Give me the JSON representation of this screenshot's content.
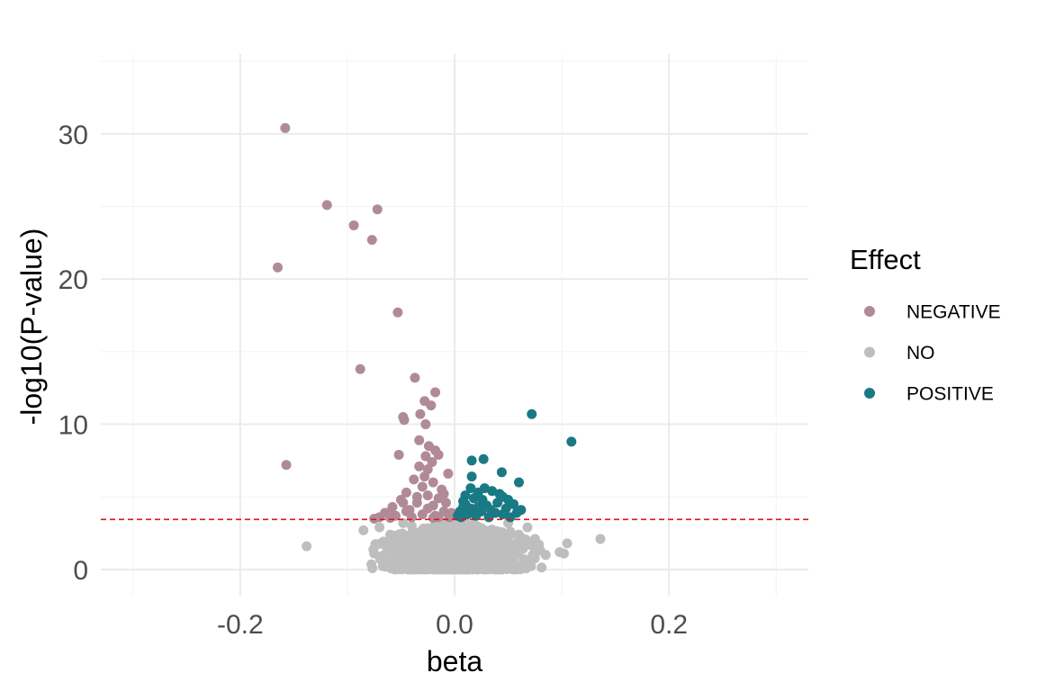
{
  "chart_data": {
    "type": "scatter",
    "title": "",
    "xlabel": "beta",
    "ylabel": "-log10(P-value)",
    "xlim": [
      -0.33,
      0.33
    ],
    "ylim": [
      -1.8,
      35.5
    ],
    "x_ticks": [
      -0.2,
      0.0,
      0.2
    ],
    "x_tick_labels": [
      "-0.2",
      "0.0",
      "0.2"
    ],
    "x_minor_ticks": [
      -0.3,
      -0.1,
      0.1,
      0.3
    ],
    "y_ticks": [
      0,
      10,
      20,
      30
    ],
    "y_tick_labels": [
      "0",
      "10",
      "20",
      "30"
    ],
    "y_minor_ticks": [
      5,
      15,
      25,
      35
    ],
    "grid": true,
    "threshold": {
      "y": 3.45,
      "color": "#d7191c",
      "style": "dashed"
    },
    "legend": {
      "title": "Effect",
      "position": "right"
    },
    "series": [
      {
        "name": "NEGATIVE",
        "color": "#b08b97",
        "points": [
          [
            -0.158,
            30.4
          ],
          [
            -0.119,
            25.1
          ],
          [
            -0.072,
            24.8
          ],
          [
            -0.094,
            23.7
          ],
          [
            -0.077,
            22.7
          ],
          [
            -0.165,
            20.8
          ],
          [
            -0.053,
            17.7
          ],
          [
            -0.088,
            13.8
          ],
          [
            -0.037,
            13.2
          ],
          [
            -0.018,
            12.2
          ],
          [
            -0.028,
            11.6
          ],
          [
            -0.022,
            11.3
          ],
          [
            -0.032,
            10.7
          ],
          [
            -0.048,
            10.5
          ],
          [
            -0.047,
            10.3
          ],
          [
            -0.027,
            10.0
          ],
          [
            -0.033,
            8.9
          ],
          [
            -0.024,
            8.5
          ],
          [
            -0.018,
            8.2
          ],
          [
            -0.027,
            7.8
          ],
          [
            -0.015,
            7.9
          ],
          [
            -0.052,
            7.9
          ],
          [
            -0.021,
            7.4
          ],
          [
            -0.033,
            7.1
          ],
          [
            -0.157,
            7.2
          ],
          [
            -0.025,
            6.9
          ],
          [
            -0.006,
            6.6
          ],
          [
            -0.038,
            6.2
          ],
          [
            -0.02,
            6.0
          ],
          [
            -0.03,
            5.7
          ],
          [
            -0.045,
            5.3
          ],
          [
            -0.012,
            5.5
          ],
          [
            -0.025,
            5.1
          ],
          [
            -0.05,
            4.8
          ],
          [
            -0.035,
            4.6
          ],
          [
            -0.015,
            4.9
          ],
          [
            -0.058,
            4.3
          ],
          [
            -0.042,
            4.1
          ],
          [
            -0.02,
            4.4
          ],
          [
            -0.065,
            3.9
          ],
          [
            -0.07,
            3.6
          ],
          [
            -0.055,
            3.7
          ],
          [
            -0.03,
            3.8
          ],
          [
            -0.01,
            4.0
          ],
          [
            -0.003,
            3.9
          ],
          [
            -0.04,
            3.6
          ],
          [
            -0.015,
            3.6
          ],
          [
            -0.075,
            3.5
          ],
          [
            -0.06,
            3.55
          ],
          [
            -0.025,
            4.2
          ],
          [
            -0.008,
            4.6
          ],
          [
            -0.048,
            4.6
          ],
          [
            -0.02,
            3.55
          ],
          [
            -0.005,
            3.6
          ],
          [
            -0.062,
            3.9
          ],
          [
            -0.035,
            5.0
          ],
          [
            -0.01,
            5.2
          ],
          [
            -0.028,
            6.4
          ],
          [
            -0.045,
            4.0
          ],
          [
            -0.018,
            3.7
          ]
        ]
      },
      {
        "name": "NO",
        "color": "#bebebe",
        "points": [
          [
            -0.138,
            1.6
          ],
          [
            -0.085,
            2.7
          ],
          [
            -0.06,
            2.4
          ],
          [
            -0.05,
            1.2
          ],
          [
            -0.045,
            2.2
          ],
          [
            -0.04,
            3.0
          ],
          [
            -0.035,
            0.6
          ],
          [
            -0.03,
            1.8
          ],
          [
            -0.025,
            2.6
          ],
          [
            -0.02,
            0.3
          ],
          [
            -0.015,
            1.4
          ],
          [
            -0.01,
            3.1
          ],
          [
            -0.005,
            0.8
          ],
          [
            0.0,
            2.0
          ],
          [
            0.005,
            0.1
          ],
          [
            0.01,
            1.5
          ],
          [
            0.015,
            2.9
          ],
          [
            0.02,
            0.5
          ],
          [
            0.025,
            2.3
          ],
          [
            0.03,
            1.0
          ],
          [
            0.035,
            2.7
          ],
          [
            0.04,
            0.4
          ],
          [
            0.045,
            1.9
          ],
          [
            0.05,
            3.2
          ],
          [
            0.055,
            1.1
          ],
          [
            0.06,
            2.4
          ],
          [
            0.065,
            0.7
          ],
          [
            0.07,
            1.7
          ],
          [
            0.075,
            2.1
          ],
          [
            0.08,
            1.3
          ],
          [
            0.098,
            1.2
          ],
          [
            0.102,
            1.1
          ],
          [
            0.105,
            1.8
          ],
          [
            0.136,
            2.1
          ],
          [
            0.085,
            1.0
          ],
          [
            -0.055,
            0.9
          ],
          [
            -0.065,
            1.7
          ],
          [
            -0.07,
            2.9
          ],
          [
            -0.048,
            3.2
          ],
          [
            0.058,
            0.2
          ],
          [
            -0.028,
            0.2
          ],
          [
            0.028,
            0.3
          ],
          [
            -0.012,
            2.2
          ],
          [
            0.012,
            2.4
          ],
          [
            0.042,
            1.3
          ],
          [
            -0.042,
            1.5
          ],
          [
            0.068,
            2.9
          ],
          [
            0.072,
            0.8
          ],
          [
            -0.075,
            1.1
          ],
          [
            0.052,
            2.6
          ]
        ],
        "cloud": {
          "x_center": 0.0,
          "x_spread": 0.045,
          "y_max": 3.4,
          "count": 1500
        }
      },
      {
        "name": "POSITIVE",
        "color": "#197a85",
        "points": [
          [
            0.072,
            10.7
          ],
          [
            0.109,
            8.8
          ],
          [
            0.027,
            7.6
          ],
          [
            0.016,
            7.5
          ],
          [
            0.044,
            6.7
          ],
          [
            0.016,
            6.4
          ],
          [
            0.06,
            6.0
          ],
          [
            0.028,
            5.6
          ],
          [
            0.022,
            5.3
          ],
          [
            0.035,
            5.4
          ],
          [
            0.01,
            5.1
          ],
          [
            0.045,
            5.0
          ],
          [
            0.05,
            4.8
          ],
          [
            0.018,
            4.9
          ],
          [
            0.04,
            4.6
          ],
          [
            0.055,
            4.5
          ],
          [
            0.008,
            4.7
          ],
          [
            0.03,
            4.4
          ],
          [
            0.015,
            4.2
          ],
          [
            0.062,
            4.1
          ],
          [
            0.025,
            4.0
          ],
          [
            0.048,
            4.2
          ],
          [
            0.005,
            4.0
          ],
          [
            0.038,
            3.9
          ],
          [
            0.012,
            3.8
          ],
          [
            0.058,
            3.9
          ],
          [
            0.02,
            3.7
          ],
          [
            0.032,
            3.6
          ],
          [
            0.045,
            3.8
          ],
          [
            0.003,
            3.7
          ],
          [
            0.052,
            3.6
          ],
          [
            0.01,
            4.5
          ],
          [
            0.026,
            4.8
          ],
          [
            0.042,
            5.2
          ],
          [
            0.015,
            5.6
          ],
          [
            0.034,
            4.1
          ],
          [
            0.006,
            3.6
          ],
          [
            0.022,
            4.3
          ],
          [
            0.018,
            3.9
          ],
          [
            0.008,
            4.3
          ]
        ]
      }
    ]
  }
}
